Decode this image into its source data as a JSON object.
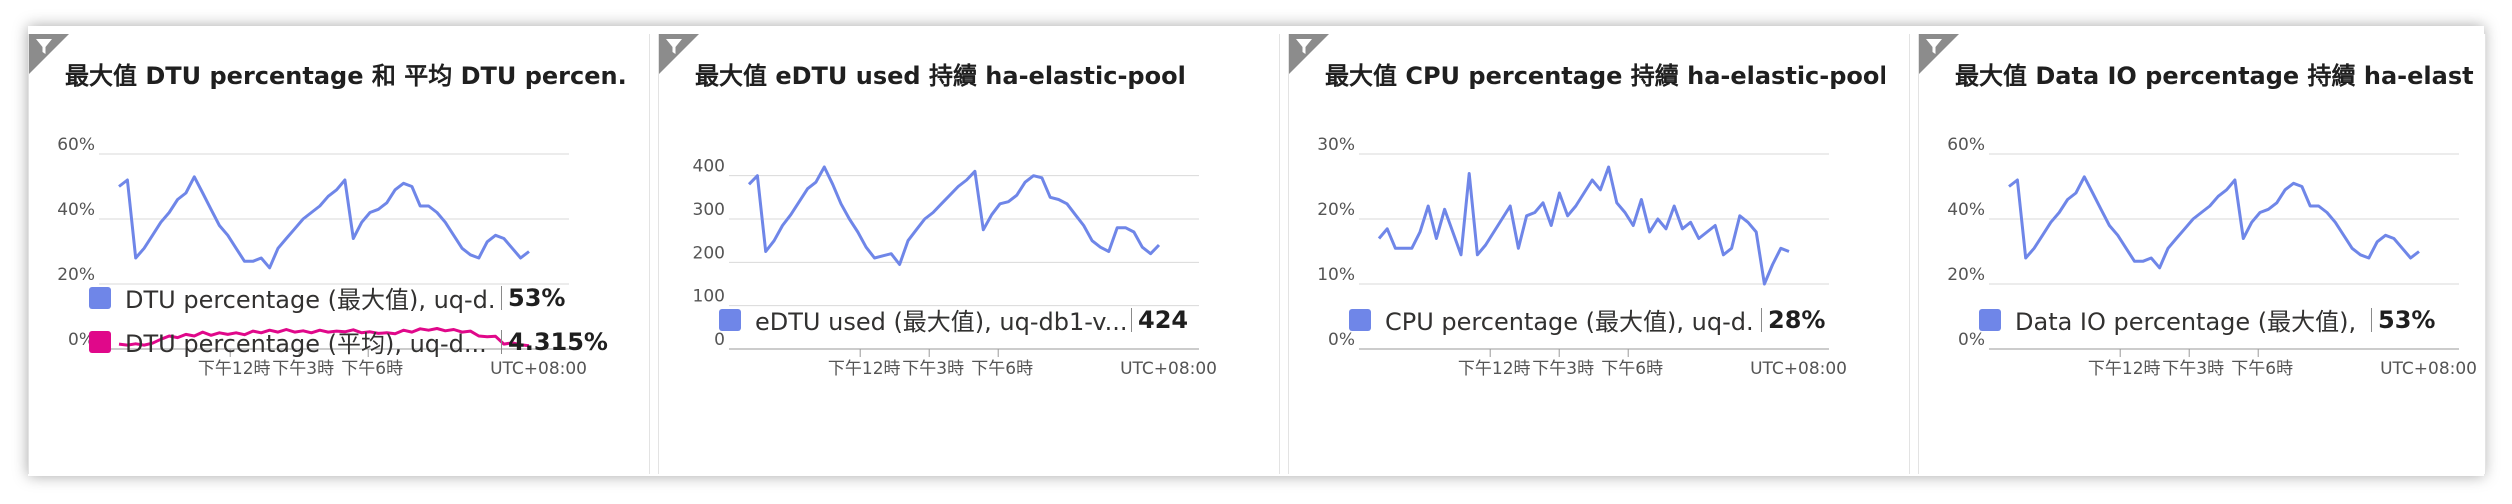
{
  "colors": {
    "blue": "#6f86e8",
    "magenta": "#e0088a",
    "grid": "#d9d9d9",
    "axis": "#9a9a9a"
  },
  "icons": {
    "corner": "filter-icon"
  },
  "tiles": [
    {
      "title": "最大值 DTU percentage 和 平均 DTU percen...",
      "legend": [
        {
          "name": "DTU percentage (最大值), uq-d...",
          "value": "53%",
          "color": "#6f86e8"
        },
        {
          "name": "DTU percentage (平均), uq-d...",
          "value": "4.315%",
          "color": "#e0088a"
        }
      ]
    },
    {
      "title": "最大值 eDTU used 持續 ha-elastic-pool",
      "legend": [
        {
          "name": "eDTU used (最大值), uq-db1-v...",
          "value": "424",
          "color": "#6f86e8"
        }
      ]
    },
    {
      "title": "最大值 CPU percentage 持續 ha-elastic-pool",
      "legend": [
        {
          "name": "CPU percentage (最大值), uq-d...",
          "value": "28%",
          "color": "#6f86e8"
        }
      ]
    },
    {
      "title": "最大值 Data IO percentage 持續 ha-elastic-...",
      "legend": [
        {
          "name": "Data IO percentage (最大值), u...",
          "value": "53%",
          "color": "#6f86e8"
        }
      ]
    }
  ],
  "chart_data": [
    {
      "type": "line",
      "title": "最大值 DTU percentage 和 平均 DTU percen...",
      "x_ticks": [
        "下午12時",
        "下午3時",
        "下午6時"
      ],
      "timezone_label": "UTC+08:00",
      "y_ticks": [
        "0%",
        "20%",
        "40%",
        "60%"
      ],
      "ylim": [
        0,
        60
      ],
      "grid": true,
      "legend_position": "bottom",
      "series": [
        {
          "name": "DTU percentage (最大值), uq-d...",
          "color": "#6f86e8",
          "values": [
            50,
            52,
            28,
            31,
            35,
            39,
            42,
            46,
            48,
            53,
            48,
            43,
            38,
            35,
            31,
            27,
            27,
            28,
            25,
            31,
            34,
            37,
            40,
            42,
            44,
            47,
            49,
            52,
            34,
            39,
            42,
            43,
            45,
            49,
            51,
            50,
            44,
            44,
            42,
            39,
            35,
            31,
            29,
            28,
            33,
            35,
            34,
            31,
            28,
            30
          ]
        },
        {
          "name": "DTU percentage (平均), uq-d...",
          "color": "#e0088a",
          "values": [
            1.5,
            1.2,
            1.6,
            1.2,
            1.8,
            3,
            4,
            3.5,
            4.5,
            4,
            5.2,
            4.2,
            5,
            4.5,
            5,
            4.4,
            5.5,
            5,
            5.8,
            5.2,
            6,
            5.2,
            5.6,
            5,
            5.8,
            5.2,
            5.5,
            5.3,
            5.9,
            5,
            5.3,
            4.8,
            5,
            4.7,
            5.8,
            5.2,
            6.2,
            5.8,
            6.3,
            5.6,
            6,
            5.2,
            5.5,
            4,
            3.8,
            3.9,
            1.5,
            1.9,
            1.3,
            1
          ]
        }
      ]
    },
    {
      "type": "line",
      "title": "最大值 eDTU used 持續 ha-elastic-pool",
      "x_ticks": [
        "下午12時",
        "下午3時",
        "下午6時"
      ],
      "timezone_label": "UTC+08:00",
      "y_ticks": [
        "0",
        "100",
        "200",
        "300",
        "400"
      ],
      "ylim": [
        0,
        450
      ],
      "grid": true,
      "legend_position": "bottom",
      "series": [
        {
          "name": "eDTU used (最大值), uq-db1-v...",
          "color": "#6f86e8",
          "values": [
            380,
            400,
            225,
            250,
            285,
            310,
            340,
            370,
            385,
            420,
            380,
            335,
            300,
            270,
            235,
            210,
            215,
            220,
            195,
            250,
            275,
            300,
            315,
            335,
            355,
            375,
            390,
            410,
            275,
            310,
            335,
            340,
            355,
            385,
            400,
            395,
            350,
            345,
            335,
            310,
            285,
            250,
            235,
            225,
            280,
            280,
            270,
            235,
            220,
            240
          ]
        }
      ]
    },
    {
      "type": "line",
      "title": "最大值 CPU percentage 持續 ha-elastic-pool",
      "x_ticks": [
        "下午12時",
        "下午3時",
        "下午6時"
      ],
      "timezone_label": "UTC+08:00",
      "y_ticks": [
        "0%",
        "10%",
        "20%",
        "30%"
      ],
      "ylim": [
        0,
        30
      ],
      "grid": true,
      "legend_position": "bottom",
      "series": [
        {
          "name": "CPU percentage (最大值), uq-d...",
          "color": "#6f86e8",
          "values": [
            17,
            18.5,
            15.5,
            15.5,
            15.5,
            18,
            22,
            17,
            21.5,
            18,
            14.5,
            27,
            14.5,
            16,
            18,
            20,
            22,
            15.5,
            20.5,
            21,
            22.5,
            19,
            24,
            20.5,
            22,
            24,
            26,
            24.5,
            28,
            22.5,
            21,
            19,
            23,
            18,
            20,
            18.5,
            22,
            18.5,
            19.5,
            17,
            18,
            19,
            14.5,
            15.5,
            20.5,
            19.5,
            18,
            10,
            13,
            15.5,
            15
          ]
        }
      ]
    },
    {
      "type": "line",
      "title": "最大值 Data IO percentage 持續 ha-elastic-...",
      "x_ticks": [
        "下午12時",
        "下午3時",
        "下午6時"
      ],
      "timezone_label": "UTC+08:00",
      "y_ticks": [
        "0%",
        "20%",
        "40%",
        "60%"
      ],
      "ylim": [
        0,
        60
      ],
      "grid": true,
      "legend_position": "bottom",
      "series": [
        {
          "name": "Data IO percentage (最大值), u...",
          "color": "#6f86e8",
          "values": [
            50,
            52,
            28,
            31,
            35,
            39,
            42,
            46,
            48,
            53,
            48,
            43,
            38,
            35,
            31,
            27,
            27,
            28,
            25,
            31,
            34,
            37,
            40,
            42,
            44,
            47,
            49,
            52,
            34,
            39,
            42,
            43,
            45,
            49,
            51,
            50,
            44,
            44,
            42,
            39,
            35,
            31,
            29,
            28,
            33,
            35,
            34,
            31,
            28,
            30
          ]
        }
      ]
    }
  ]
}
